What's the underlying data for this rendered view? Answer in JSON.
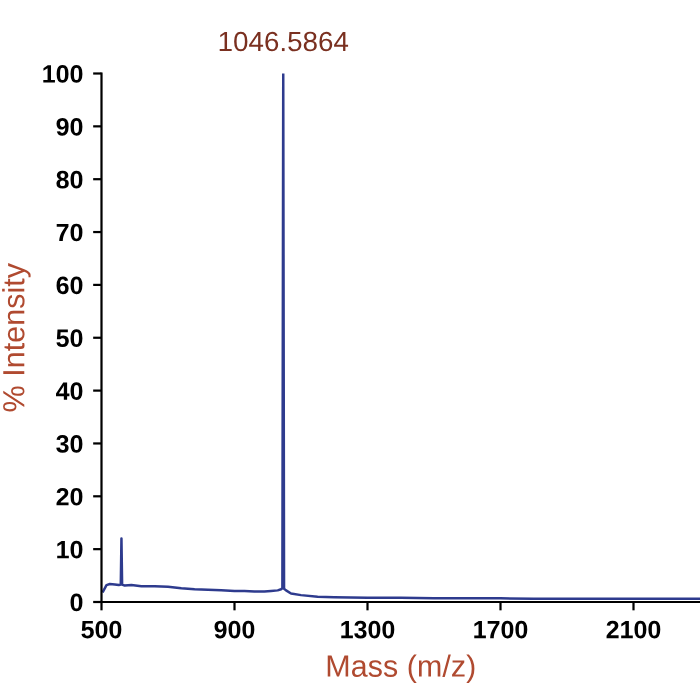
{
  "chart_data": {
    "type": "line",
    "xlabel": "Mass (m/z)",
    "ylabel": "% Intensity",
    "annotations": [
      {
        "text": "1046.5864",
        "x": 1046.5864,
        "y": 100
      }
    ],
    "series": [
      {
        "color": "#2e3b8e",
        "x": [
          505,
          515,
          525,
          540,
          552,
          558,
          560,
          562,
          570,
          590,
          620,
          660,
          700,
          740,
          780,
          820,
          860,
          900,
          930,
          960,
          990,
          1010,
          1030,
          1040,
          1044,
          1046.5864,
          1049,
          1055,
          1070,
          1100,
          1150,
          1200,
          1300,
          1400,
          1500,
          1600,
          1700,
          1800,
          1900,
          2000,
          2100,
          2200,
          2300
        ],
        "values": [
          2,
          3.2,
          3.4,
          3.3,
          3.2,
          3.3,
          12,
          3.3,
          3.1,
          3.2,
          3,
          3,
          2.9,
          2.6,
          2.4,
          2.3,
          2.2,
          2.1,
          2.1,
          2,
          2,
          2.1,
          2.2,
          2.4,
          2.6,
          100,
          2.5,
          2.2,
          1.6,
          1.3,
          1,
          0.9,
          0.8,
          0.8,
          0.7,
          0.7,
          0.7,
          0.6,
          0.6,
          0.6,
          0.6,
          0.6,
          0.6
        ]
      }
    ],
    "xlim": [
      500,
      2300
    ],
    "ylim": [
      0,
      100
    ],
    "xticks": [
      500,
      900,
      1300,
      1700,
      2100
    ],
    "yticks": [
      0,
      10,
      20,
      30,
      40,
      50,
      60,
      70,
      80,
      90,
      100
    ],
    "grid": false,
    "legend": false,
    "marker": "none",
    "line_style": "solid"
  }
}
